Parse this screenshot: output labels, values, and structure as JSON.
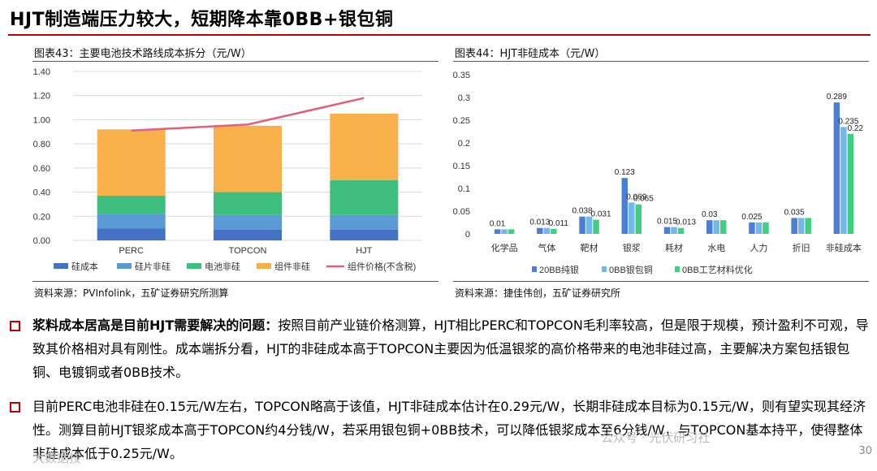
{
  "title": "HJT制造端压力较大，短期降本靠0BB+银包铜",
  "charts": [
    {
      "caption": "图表43：主要电池技术路线成本拆分（元/W）",
      "source": "资料来源：PVInfolink，五矿证券研究所测算"
    },
    {
      "caption": "图表44：HJT非硅成本（元/W）",
      "source": "资料来源：捷佳伟创，五矿证券研究所"
    }
  ],
  "chart_data": [
    {
      "type": "bar",
      "stacked": true,
      "categories": [
        "PERC",
        "TOPCON",
        "HJT"
      ],
      "series": [
        {
          "name": "硅成本",
          "color": "#4472c4",
          "values": [
            0.1,
            0.09,
            0.09
          ]
        },
        {
          "name": "硅片非硅",
          "color": "#5b9bd5",
          "values": [
            0.12,
            0.12,
            0.12
          ]
        },
        {
          "name": "电池非硅",
          "color": "#3fbf7f",
          "values": [
            0.15,
            0.19,
            0.29
          ]
        },
        {
          "name": "组件非硅",
          "color": "#f8b04b",
          "values": [
            0.55,
            0.55,
            0.55
          ]
        }
      ],
      "line_series": {
        "name": "组件价格(不含税)",
        "color": "#e0607e",
        "values": [
          0.91,
          0.96,
          1.18
        ]
      },
      "ylim": [
        0,
        1.4
      ],
      "yticks": [
        "0.00",
        "0.20",
        "0.40",
        "0.60",
        "0.80",
        "1.00",
        "1.20",
        "1.40"
      ],
      "grid": true,
      "legend": "bottom"
    },
    {
      "type": "bar",
      "categories": [
        "化学品",
        "气体",
        "靶材",
        "银浆",
        "耗材",
        "水电",
        "人力",
        "折旧",
        "非硅成本"
      ],
      "series": [
        {
          "name": "20BB纯银",
          "color": "#4a7fd8",
          "values": [
            0.01,
            0.013,
            0.038,
            0.123,
            0.015,
            0.03,
            0.025,
            0.035,
            0.289
          ]
        },
        {
          "name": "0BB银包铜",
          "color": "#73b7ec",
          "values": [
            0.01,
            0.013,
            0.038,
            0.069,
            0.015,
            0.03,
            0.025,
            0.035,
            0.235
          ]
        },
        {
          "name": "0BB工艺材料优化",
          "color": "#3fcf80",
          "values": [
            0.01,
            0.011,
            0.031,
            0.065,
            0.013,
            0.03,
            0.025,
            0.035,
            0.22
          ]
        }
      ],
      "labels": [
        {
          "cat": 0,
          "text": "0.01"
        },
        {
          "cat": 1,
          "text": "0.013"
        },
        {
          "cat": 1,
          "text": "0.011",
          "series": 2
        },
        {
          "cat": 2,
          "text": "0.038"
        },
        {
          "cat": 2,
          "text": "0.031",
          "series": 2
        },
        {
          "cat": 3,
          "text": "0.123"
        },
        {
          "cat": 3,
          "text": "0.069",
          "series": 1
        },
        {
          "cat": 3,
          "text": "0.065",
          "series": 2
        },
        {
          "cat": 4,
          "text": "0.015"
        },
        {
          "cat": 4,
          "text": "0.013",
          "series": 2
        },
        {
          "cat": 5,
          "text": "0.03"
        },
        {
          "cat": 6,
          "text": "0.025"
        },
        {
          "cat": 7,
          "text": "0.035"
        },
        {
          "cat": 8,
          "text": "0.289"
        },
        {
          "cat": 8,
          "text": "0.235",
          "series": 1
        },
        {
          "cat": 8,
          "text": "0.22",
          "series": 2
        }
      ],
      "ylim": [
        0,
        0.35
      ],
      "yticks": [
        "0",
        "0.05",
        "0.1",
        "0.15",
        "0.2",
        "0.25",
        "0.3",
        "0.35"
      ],
      "grid": false,
      "legend": "bottom"
    }
  ],
  "bullets": [
    {
      "lead": "浆料成本居高是目前HJT需要解决的问题：",
      "text": "按照目前产业链价格测算，HJT相比PERC和TOPCON毛利率较高，但是限于规模，预计盈利不可观，导致其价格相对具有刚性。成本端拆分看，HJT的非硅成本高于TOPCON主要因为低温银浆的高价格带来的电池非硅过高，主要解决方案包括银包铜、电镀铜或者0BB技术。"
    },
    {
      "lead": "",
      "text": "目前PERC电池非硅在0.15元/W左右，TOPCON略高于该值，HJT非硅成本估计在0.29元/W，长期非硅成本目标为0.15元/W，则有望实现其经济性。测算目前HJT银浆成本高于TOPCON约4分钱/W，若采用银包铜+0BB技术，可以降低银浆成本至6分钱/W，与TOPCON基本持平，使得整体非硅成本低于0.25元/W。"
    }
  ],
  "page_number": "30",
  "watermarks": [
    "公众号 · 光伏研习社",
    "大数据技"
  ]
}
